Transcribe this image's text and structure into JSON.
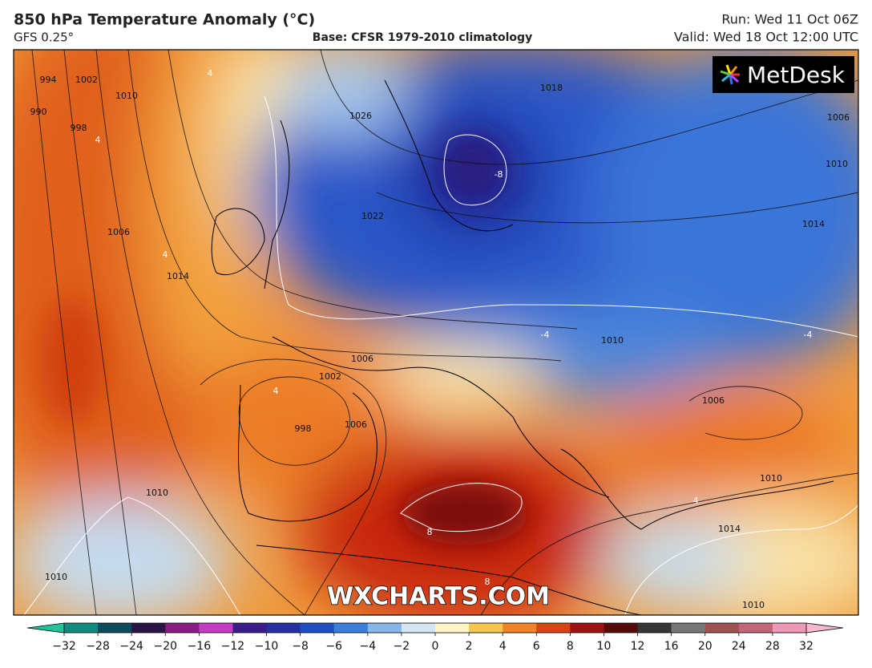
{
  "header": {
    "title": "850 hPa Temperature Anomaly (°C)",
    "model": "GFS 0.25°",
    "base": "Base: CFSR 1979-2010 climatology",
    "run": "Run: Wed 11 Oct 06Z",
    "valid": "Valid: Wed 18 Oct 12:00 UTC"
  },
  "logo": "MetDesk",
  "watermark": "WXCHARTS.COM",
  "map": {
    "isobar_labels": [
      "994",
      "1002",
      "1010",
      "990",
      "998",
      "1006",
      "1014",
      "1026",
      "1022",
      "1018",
      "1006",
      "1010",
      "1014",
      "1006",
      "1002",
      "998",
      "1006",
      "1010",
      "1010",
      "1014",
      "1006",
      "1010",
      "1010",
      "1010"
    ],
    "anomaly_labels": [
      "-8",
      "8",
      "4",
      "4",
      "-4",
      "-4",
      "4",
      "8",
      "4",
      "4"
    ]
  },
  "colorbar": {
    "ticks": [
      {
        "value": -32,
        "label": "−32"
      },
      {
        "value": -28,
        "label": "−28"
      },
      {
        "value": -24,
        "label": "−24"
      },
      {
        "value": -20,
        "label": "−20"
      },
      {
        "value": -16,
        "label": "−16"
      },
      {
        "value": -12,
        "label": "−12"
      },
      {
        "value": -10,
        "label": "−10"
      },
      {
        "value": -8,
        "label": "−8"
      },
      {
        "value": -6,
        "label": "−6"
      },
      {
        "value": -4,
        "label": "−4"
      },
      {
        "value": -2,
        "label": "−2"
      },
      0,
      2,
      4,
      6,
      8,
      10,
      12,
      16,
      20,
      24,
      28,
      32
    ],
    "colors": [
      "#0e8a7e",
      "#0c4a5e",
      "#2a1446",
      "#8a1a86",
      "#c43cc4",
      "#3c1c8c",
      "#2430a4",
      "#1f4fc4",
      "#3b7fdc",
      "#84b6ea",
      "#d4e6f4",
      "#fff4c4",
      "#f8c44c",
      "#f08424",
      "#d84412",
      "#a01212",
      "#560a0a",
      "#363636",
      "#767676",
      "#9e5252",
      "#c46478",
      "#ec98b6"
    ],
    "under_color": "#1fc49a",
    "over_color": "#f4b8d0"
  }
}
